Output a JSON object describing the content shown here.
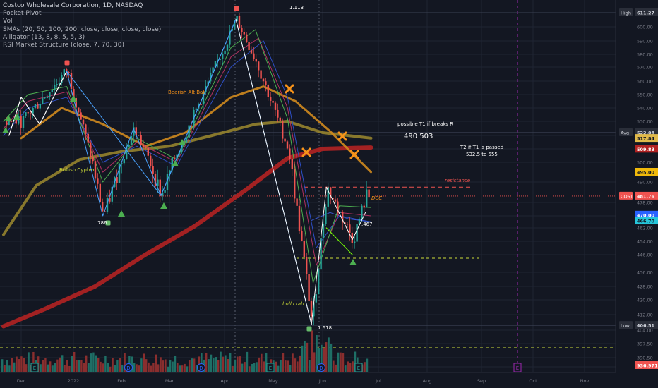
{
  "legend": {
    "symbol": "Costco Wholesale Corporation, 1D, NASDAQ",
    "lines": [
      "Pocket Pivot",
      "Vol",
      "SMAs (20, 50, 100, 200, close, close, close, close)",
      "Alligator (13, 8, 8, 5, 5, 3)",
      "RSI Market Structure (close, 7, 70, 30)"
    ]
  },
  "annotations": {
    "fib_top": "1.113",
    "fib_786": ".786",
    "fib_1618": "1.618",
    "fib_467": ".467",
    "bearish_alt_bat": "Bearish Alt Bat",
    "bullish_cypher": "Bullish Cypher",
    "bull_crab": "bull crab",
    "possible_t1": "possible T1 if breaks R",
    "targets": "490   503",
    "t2_line1": "T2 if T1 is passed",
    "t2_line2": "532.5 to 555",
    "resistance": "resistance",
    "dcc": "DCC"
  },
  "price_axis": {
    "ticks": [
      "600.00",
      "590.00",
      "580.00",
      "570.00",
      "560.00",
      "550.00",
      "540.00",
      "530.00",
      "520.00",
      "510.00",
      "500.00",
      "490.00",
      "478.00",
      "470.00",
      "462.00",
      "454.00",
      "446.00",
      "436.00",
      "428.00",
      "420.00",
      "412.00",
      "404.00",
      "397.50",
      "390.50"
    ],
    "badges": [
      {
        "label": "High",
        "value": "611.27",
        "color": "#2a2e39",
        "text": "#d1d4dc"
      },
      {
        "label": "Avg",
        "value": "522.08",
        "color": "#2a2e39",
        "text": "#d1d4dc"
      },
      {
        "label": "",
        "value": "517.84",
        "color": "#e0b94a",
        "text": "#131722"
      },
      {
        "label": "",
        "value": "509.83",
        "color": "#b22222",
        "text": "#ffffff"
      },
      {
        "label": "",
        "value": "495.00",
        "color": "#f0b90b",
        "text": "#131722"
      },
      {
        "label": "COST",
        "value": "481.76",
        "color": "#ef5350",
        "text": "#ffffff"
      },
      {
        "label": "",
        "value": "470.00",
        "color": "#2962ff",
        "text": "#ffffff"
      },
      {
        "label": "",
        "value": "466.70",
        "color": "#26c6da",
        "text": "#131722"
      },
      {
        "label": "Low",
        "value": "406.51",
        "color": "#2a2e39",
        "text": "#d1d4dc"
      },
      {
        "label": "",
        "value": "936.971K",
        "color": "#ef5350",
        "text": "#ffffff"
      }
    ]
  },
  "time_axis": {
    "labels": [
      "Dec",
      "2022",
      "Feb",
      "Mar",
      "Apr",
      "May",
      "Jun",
      "Jul",
      "Aug",
      "Sep",
      "Oct",
      "Nov"
    ]
  },
  "event_markers": [
    "E",
    "D",
    "D",
    "E",
    "D",
    "E",
    "E"
  ],
  "colors": {
    "up": "#26a69a",
    "down": "#ef5350",
    "sma200": "#b22222",
    "sma100": "#9e8a2e",
    "sma50": "#d08a1e",
    "pattern": "#4aa3ff",
    "white": "#ffffff",
    "green_arrow": "#4caf50"
  },
  "chart_data": {
    "type": "candlestick",
    "title": "Costco Wholesale Corporation, 1D, NASDAQ",
    "ylim": [
      386,
      612
    ],
    "period": "1D",
    "swing_points": [
      {
        "date": "2021-12-01",
        "price": 530
      },
      {
        "date": "2021-12-28",
        "price": 568
      },
      {
        "date": "2022-01-20",
        "price": 470
      },
      {
        "date": "2022-02-08",
        "price": 525
      },
      {
        "date": "2022-02-24",
        "price": 482
      },
      {
        "date": "2022-03-10",
        "price": 522
      },
      {
        "date": "2022-04-08",
        "price": 606
      },
      {
        "date": "2022-04-20",
        "price": 575
      },
      {
        "date": "2022-05-10",
        "price": 510
      },
      {
        "date": "2022-05-25",
        "price": 407
      },
      {
        "date": "2022-06-03",
        "price": 487
      },
      {
        "date": "2022-06-17",
        "price": 455
      },
      {
        "date": "2022-06-24",
        "price": 482
      }
    ],
    "levels": {
      "high": 611.27,
      "avg": 522.08,
      "low": 406.51,
      "last": 481.76,
      "resistance": 487,
      "support": 444
    },
    "last_volume": "936.971K"
  }
}
